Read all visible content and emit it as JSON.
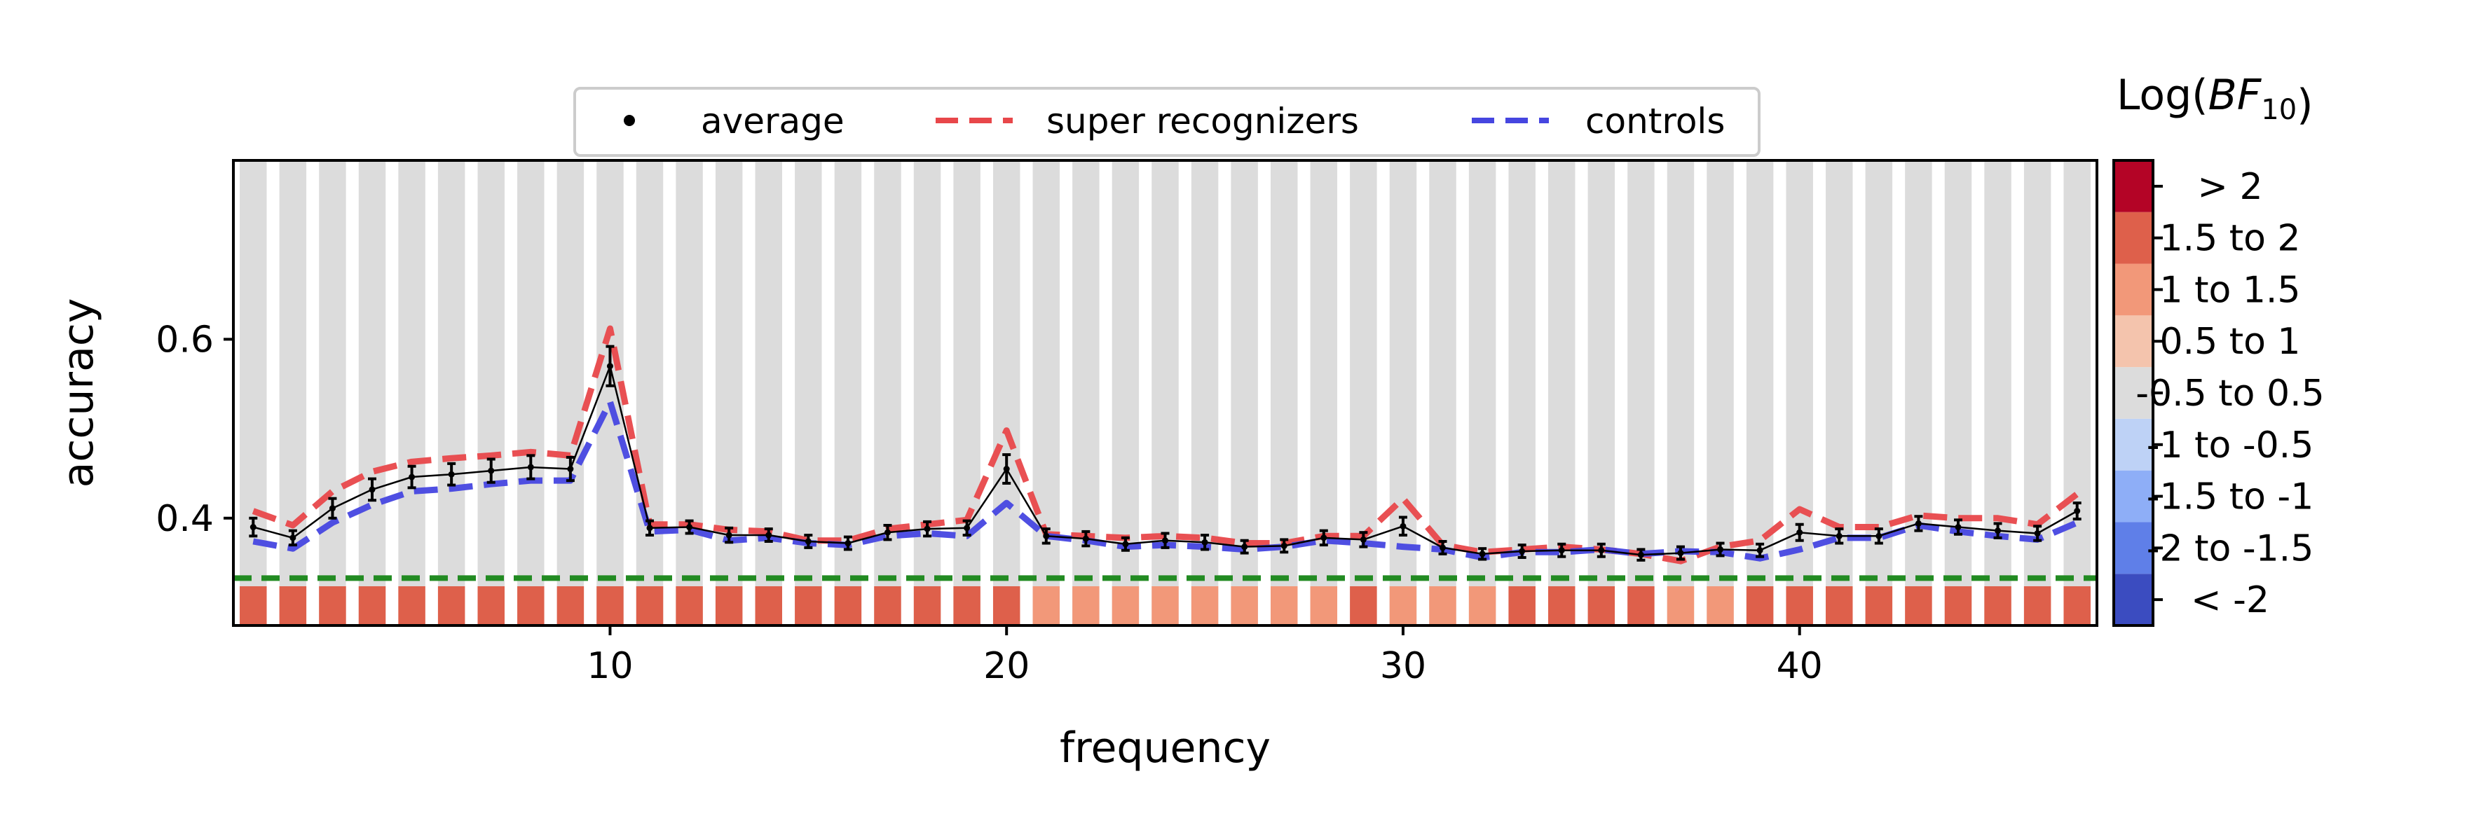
{
  "chart_data": {
    "type": "line",
    "xlabel": "frequency",
    "ylabel": "accuracy",
    "xlim": [
      0.5,
      47.5
    ],
    "ylim": [
      0.28,
      0.8
    ],
    "xticks": [
      10,
      20,
      30,
      40
    ],
    "yticks": [
      0.4,
      0.6
    ],
    "xtick_labels": [
      "10",
      "20",
      "30",
      "40"
    ],
    "ytick_labels": [
      "0.4",
      "0.6"
    ],
    "grid": false,
    "legend_position": "top-center",
    "legend": [
      {
        "label": "average",
        "style": "marker",
        "color": "#000000"
      },
      {
        "label": "super recognizers",
        "style": "dashed",
        "color": "#e8474a"
      },
      {
        "label": "controls",
        "style": "dashed",
        "color": "#4646e0"
      }
    ],
    "x": [
      1,
      2,
      3,
      4,
      5,
      6,
      7,
      8,
      9,
      10,
      11,
      12,
      13,
      14,
      15,
      16,
      17,
      18,
      19,
      20,
      21,
      22,
      23,
      24,
      25,
      26,
      27,
      28,
      29,
      30,
      31,
      32,
      33,
      34,
      35,
      36,
      37,
      38,
      39,
      40,
      41,
      42,
      43,
      44,
      45,
      46,
      47
    ],
    "series": [
      {
        "name": "super recognizers",
        "color": "#e8474a",
        "values": [
          0.408,
          0.392,
          0.43,
          0.452,
          0.463,
          0.467,
          0.47,
          0.474,
          0.47,
          0.612,
          0.393,
          0.393,
          0.387,
          0.385,
          0.375,
          0.375,
          0.388,
          0.393,
          0.398,
          0.498,
          0.382,
          0.38,
          0.378,
          0.38,
          0.378,
          0.372,
          0.372,
          0.38,
          0.38,
          0.422,
          0.37,
          0.362,
          0.365,
          0.368,
          0.365,
          0.36,
          0.352,
          0.368,
          0.375,
          0.41,
          0.39,
          0.39,
          0.403,
          0.4,
          0.4,
          0.393,
          0.427
        ]
      },
      {
        "name": "controls",
        "color": "#4646e0",
        "values": [
          0.374,
          0.366,
          0.395,
          0.415,
          0.43,
          0.433,
          0.438,
          0.442,
          0.442,
          0.53,
          0.385,
          0.387,
          0.375,
          0.378,
          0.372,
          0.37,
          0.38,
          0.383,
          0.38,
          0.417,
          0.38,
          0.375,
          0.368,
          0.37,
          0.368,
          0.365,
          0.368,
          0.375,
          0.372,
          0.368,
          0.365,
          0.356,
          0.362,
          0.362,
          0.365,
          0.36,
          0.363,
          0.362,
          0.355,
          0.365,
          0.378,
          0.378,
          0.392,
          0.385,
          0.38,
          0.376,
          0.395
        ]
      },
      {
        "name": "average",
        "color": "#000000",
        "values": [
          0.39,
          0.378,
          0.411,
          0.432,
          0.446,
          0.449,
          0.453,
          0.457,
          0.455,
          0.57,
          0.389,
          0.39,
          0.381,
          0.381,
          0.374,
          0.372,
          0.384,
          0.388,
          0.389,
          0.455,
          0.38,
          0.377,
          0.371,
          0.375,
          0.373,
          0.368,
          0.369,
          0.378,
          0.376,
          0.391,
          0.367,
          0.36,
          0.363,
          0.364,
          0.364,
          0.359,
          0.361,
          0.365,
          0.364,
          0.384,
          0.38,
          0.38,
          0.394,
          0.39,
          0.386,
          0.383,
          0.408
        ],
        "errors": [
          0.01,
          0.008,
          0.011,
          0.012,
          0.012,
          0.012,
          0.013,
          0.013,
          0.013,
          0.022,
          0.008,
          0.007,
          0.008,
          0.007,
          0.007,
          0.007,
          0.008,
          0.008,
          0.008,
          0.016,
          0.008,
          0.008,
          0.007,
          0.008,
          0.008,
          0.007,
          0.007,
          0.008,
          0.008,
          0.01,
          0.007,
          0.006,
          0.007,
          0.007,
          0.007,
          0.006,
          0.007,
          0.007,
          0.007,
          0.009,
          0.008,
          0.008,
          0.008,
          0.008,
          0.008,
          0.008,
          0.009
        ]
      }
    ],
    "chance_level": 0.333,
    "bf_bins": [
      7,
      7,
      7,
      7,
      7,
      7,
      7,
      7,
      7,
      7,
      7,
      7,
      7,
      7,
      7,
      7,
      7,
      7,
      7,
      7,
      6,
      6,
      6,
      6,
      6,
      6,
      6,
      6,
      7,
      6,
      6,
      6,
      7,
      7,
      7,
      7,
      6,
      6,
      7,
      7,
      7,
      7,
      7,
      7,
      7,
      7,
      7
    ],
    "colorbar": {
      "title": "Log(BF10)",
      "levels": [
        {
          "label": "< -2",
          "color": "#3b4cc0"
        },
        {
          "label": "-2 to -1.5",
          "color": "#5f7fe8"
        },
        {
          "label": "-1.5 to -1",
          "color": "#8eaef7"
        },
        {
          "label": "-1 to -0.5",
          "color": "#bed2f6"
        },
        {
          "label": "-0.5 to 0.5",
          "color": "#dcdcdc"
        },
        {
          "label": "0.5 to 1",
          "color": "#f4c4ad"
        },
        {
          "label": "1 to 1.5",
          "color": "#f29879"
        },
        {
          "label": "1.5 to 2",
          "color": "#de604b"
        },
        {
          "label": "> 2",
          "color": "#b40426"
        }
      ]
    }
  }
}
